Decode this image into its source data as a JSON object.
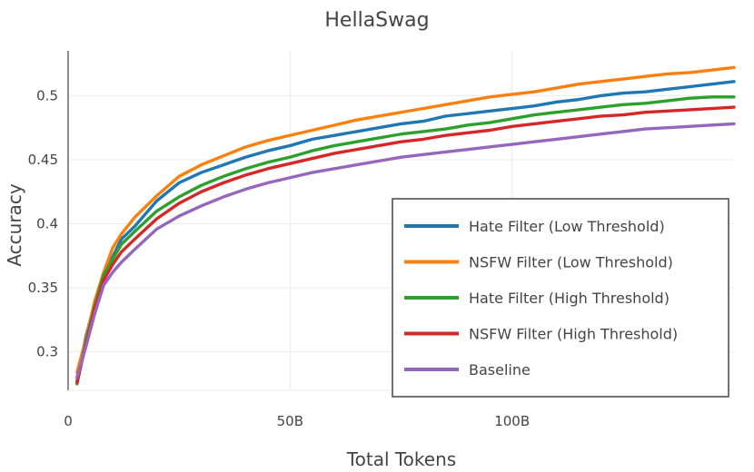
{
  "chart_data": {
    "type": "line",
    "title": "HellaSwag",
    "xlabel": "Total Tokens",
    "ylabel": "Accuracy",
    "xlim": [
      0,
      150
    ],
    "ylim": [
      0.27,
      0.535
    ],
    "x_unit": "billion tokens",
    "x_ticks": [
      {
        "value": 0,
        "label": "0"
      },
      {
        "value": 50,
        "label": "50B"
      },
      {
        "value": 100,
        "label": "100B"
      }
    ],
    "y_ticks": [
      {
        "value": 0.3,
        "label": "0.3"
      },
      {
        "value": 0.35,
        "label": "0.35"
      },
      {
        "value": 0.4,
        "label": "0.4"
      },
      {
        "value": 0.45,
        "label": "0.45"
      },
      {
        "value": 0.5,
        "label": "0.5"
      }
    ],
    "grid": true,
    "legend": "bottom-right",
    "x": [
      2,
      4,
      6,
      8,
      10,
      12,
      15,
      20,
      25,
      30,
      35,
      40,
      45,
      50,
      55,
      60,
      65,
      70,
      75,
      80,
      85,
      90,
      95,
      100,
      105,
      110,
      115,
      120,
      125,
      130,
      135,
      140,
      145,
      150
    ],
    "series": [
      {
        "name": "Hate Filter (Low Threshold)",
        "color": "#1f77b4",
        "values": [
          0.277,
          0.312,
          0.338,
          0.362,
          0.374,
          0.388,
          0.398,
          0.418,
          0.432,
          0.44,
          0.446,
          0.452,
          0.457,
          0.461,
          0.466,
          0.469,
          0.472,
          0.475,
          0.478,
          0.48,
          0.484,
          0.486,
          0.488,
          0.49,
          0.492,
          0.495,
          0.497,
          0.5,
          0.502,
          0.503,
          0.505,
          0.507,
          0.509,
          0.511
        ]
      },
      {
        "name": "NSFW Filter (Low Threshold)",
        "color": "#ff7f0e",
        "values": [
          0.284,
          0.31,
          0.34,
          0.362,
          0.381,
          0.392,
          0.405,
          0.422,
          0.437,
          0.446,
          0.453,
          0.46,
          0.465,
          0.469,
          0.473,
          0.477,
          0.481,
          0.484,
          0.487,
          0.49,
          0.493,
          0.496,
          0.499,
          0.501,
          0.503,
          0.506,
          0.509,
          0.511,
          0.513,
          0.515,
          0.517,
          0.518,
          0.52,
          0.522
        ]
      },
      {
        "name": "Hate Filter (High Threshold)",
        "color": "#2ca02c",
        "values": [
          0.275,
          0.308,
          0.336,
          0.36,
          0.372,
          0.384,
          0.394,
          0.41,
          0.421,
          0.43,
          0.437,
          0.443,
          0.448,
          0.452,
          0.457,
          0.461,
          0.464,
          0.467,
          0.47,
          0.472,
          0.474,
          0.477,
          0.479,
          0.482,
          0.485,
          0.487,
          0.489,
          0.491,
          0.493,
          0.494,
          0.496,
          0.498,
          0.499,
          0.499
        ]
      },
      {
        "name": "NSFW Filter (High Threshold)",
        "color": "#d62728",
        "values": [
          0.276,
          0.306,
          0.334,
          0.356,
          0.368,
          0.378,
          0.388,
          0.404,
          0.416,
          0.425,
          0.432,
          0.438,
          0.443,
          0.447,
          0.451,
          0.455,
          0.458,
          0.461,
          0.464,
          0.466,
          0.469,
          0.471,
          0.473,
          0.476,
          0.478,
          0.48,
          0.482,
          0.484,
          0.485,
          0.487,
          0.488,
          0.489,
          0.49,
          0.491
        ]
      },
      {
        "name": "Baseline",
        "color": "#9467bd",
        "values": [
          0.28,
          0.304,
          0.33,
          0.352,
          0.362,
          0.37,
          0.38,
          0.396,
          0.406,
          0.414,
          0.421,
          0.427,
          0.432,
          0.436,
          0.44,
          0.443,
          0.446,
          0.449,
          0.452,
          0.454,
          0.456,
          0.458,
          0.46,
          0.462,
          0.464,
          0.466,
          0.468,
          0.47,
          0.472,
          0.474,
          0.475,
          0.476,
          0.477,
          0.478
        ]
      }
    ]
  }
}
